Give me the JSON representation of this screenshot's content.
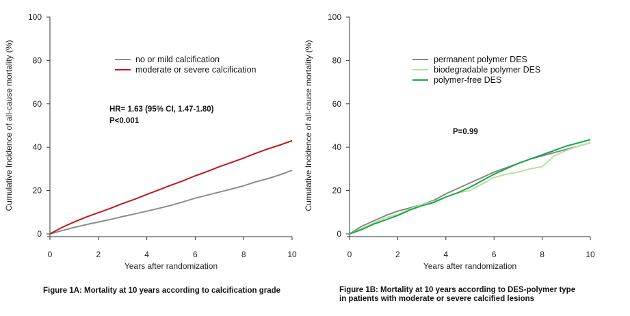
{
  "chart_data": [
    {
      "type": "line",
      "title": "",
      "xlabel": "Years after randomization",
      "ylabel": "Cumulative Incidence of all-cause mortality (%)",
      "xlim": [
        0,
        10
      ],
      "ylim": [
        0,
        100
      ],
      "xticks": [
        0,
        2,
        4,
        6,
        8,
        10
      ],
      "yticks": [
        0,
        20,
        40,
        60,
        80,
        100
      ],
      "grid": false,
      "legend": "upper-center",
      "annotations": [
        "HR= 1.63 (95% CI, 1.47-1.80)",
        "P<0.001"
      ],
      "caption": "Figure 1A: Mortality at 10 years according to calcification grade",
      "series": [
        {
          "name": "no or mild calcification",
          "color": "#8c8c8c",
          "x": [
            0,
            0.5,
            1,
            1.5,
            2,
            2.5,
            3,
            3.5,
            4,
            4.5,
            5,
            5.5,
            6,
            6.5,
            7,
            7.5,
            8,
            8.5,
            9,
            9.5,
            10
          ],
          "y": [
            0,
            1.5,
            3.0,
            4.3,
            5.5,
            6.7,
            8.0,
            9.2,
            10.5,
            11.8,
            13.2,
            14.8,
            16.5,
            17.9,
            19.3,
            20.7,
            22.2,
            24.0,
            25.5,
            27.3,
            29.3
          ]
        },
        {
          "name": "moderate or severe calcification",
          "color": "#c0181a",
          "x": [
            0,
            0.5,
            1,
            1.5,
            2,
            2.5,
            3,
            3.5,
            4,
            4.5,
            5,
            5.5,
            6,
            6.5,
            7,
            7.5,
            8,
            8.5,
            9,
            9.5,
            10
          ],
          "y": [
            0,
            3.0,
            5.5,
            7.8,
            9.8,
            11.8,
            14.0,
            16.0,
            18.2,
            20.3,
            22.5,
            24.5,
            26.8,
            28.8,
            31.0,
            33.0,
            35.0,
            37.2,
            39.2,
            41.0,
            43.0
          ]
        }
      ]
    },
    {
      "type": "line",
      "title": "",
      "xlabel": "Years after randomization",
      "ylabel": "Cumulative Incidence of all-cause mortality (%)",
      "xlim": [
        0,
        10
      ],
      "ylim": [
        0,
        100
      ],
      "xticks": [
        0,
        2,
        4,
        6,
        8,
        10
      ],
      "yticks": [
        0,
        20,
        40,
        60,
        80,
        100
      ],
      "grid": false,
      "legend": "upper-center",
      "annotations": [
        "P=0.99"
      ],
      "caption_lines": [
        "Figure 1B: Mortality at 10 years according to DES-polymer type",
        "in patients with moderate or severe calcified lesions"
      ],
      "series": [
        {
          "name": "permanent polymer DES",
          "color": "#858585",
          "x": [
            0,
            0.5,
            1,
            1.5,
            2,
            2.5,
            3,
            3.5,
            4,
            4.5,
            5,
            5.5,
            6,
            6.5,
            7,
            7.5,
            8,
            8.5,
            9,
            9.5,
            10
          ],
          "y": [
            0,
            3.5,
            6.0,
            8.5,
            10.5,
            12.0,
            13.5,
            15.5,
            18.5,
            21.0,
            23.5,
            26.0,
            28.5,
            30.5,
            32.5,
            34.5,
            36.0,
            37.5,
            39.0,
            40.5,
            42.0
          ]
        },
        {
          "name": "biodegradable polymer DES",
          "color": "#b5e0a6",
          "x": [
            0,
            0.5,
            1,
            1.5,
            2,
            2.5,
            3,
            3.5,
            4,
            4.5,
            5,
            5.5,
            6,
            6.5,
            7,
            7.5,
            8,
            8.5,
            9,
            9.5,
            10
          ],
          "y": [
            0,
            2.5,
            5.0,
            7.5,
            9.0,
            11.5,
            13.5,
            15.0,
            17.0,
            19.0,
            20.0,
            23.0,
            26.0,
            27.5,
            28.5,
            30.0,
            31.0,
            36.0,
            38.5,
            40.5,
            42.0
          ]
        },
        {
          "name": "polymer-free DES",
          "color": "#1aa64a",
          "x": [
            0,
            0.5,
            1,
            1.5,
            2,
            2.5,
            3,
            3.5,
            4,
            4.5,
            5,
            5.5,
            6,
            6.5,
            7,
            7.5,
            8,
            8.5,
            9,
            9.5,
            10
          ],
          "y": [
            0,
            2.0,
            4.5,
            6.5,
            8.5,
            11.0,
            13.0,
            14.5,
            17.0,
            19.0,
            21.5,
            24.5,
            27.5,
            30.0,
            32.5,
            34.5,
            36.5,
            38.5,
            40.5,
            42.0,
            43.5
          ]
        }
      ]
    }
  ]
}
